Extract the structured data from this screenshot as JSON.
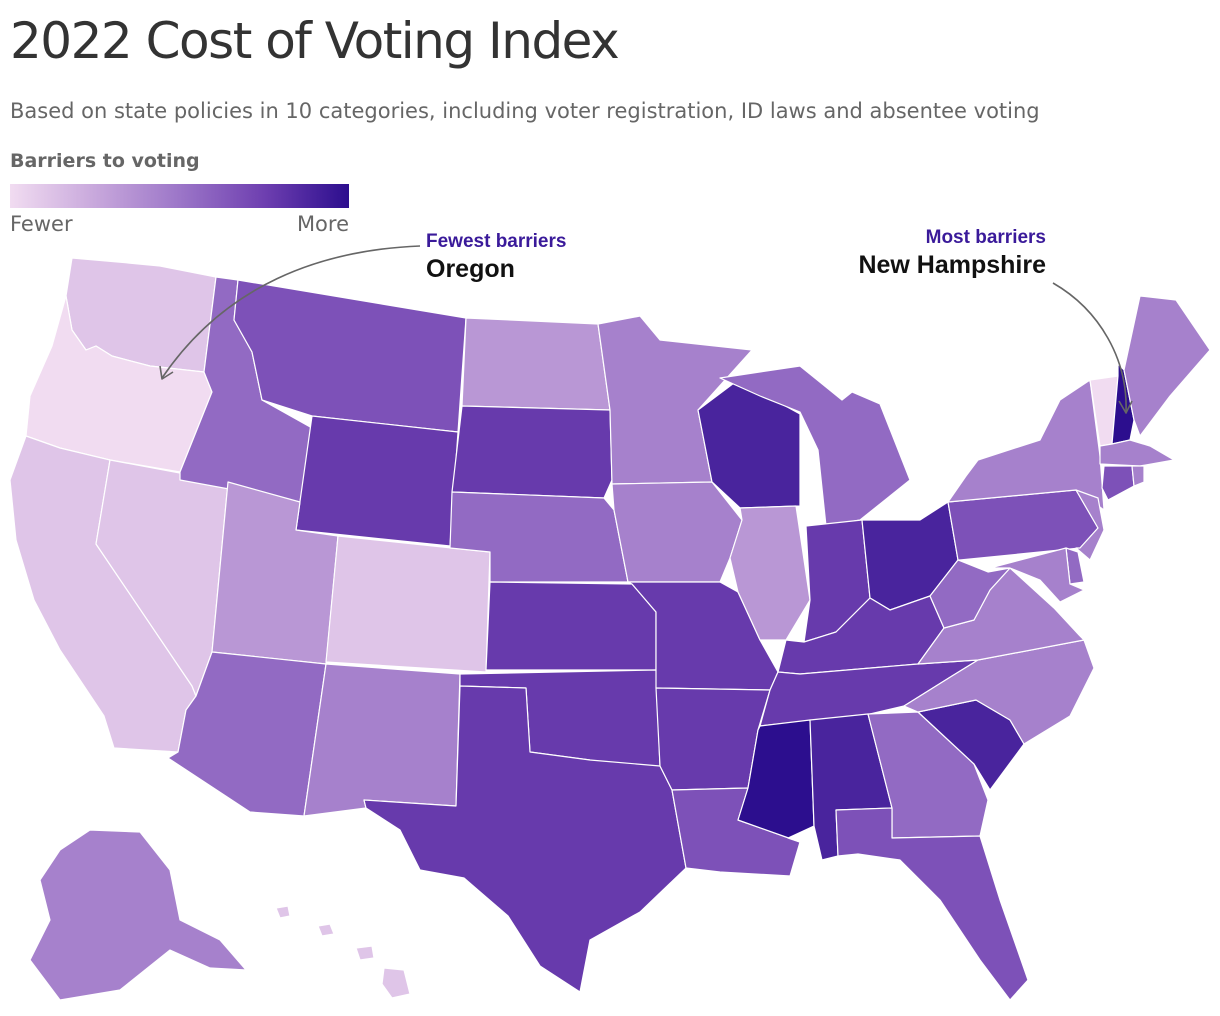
{
  "title": "2022 Cost of Voting Index",
  "subtitle": "Based on state policies in 10 categories, including voter registration, ID laws and absentee voting",
  "legend": {
    "title": "Barriers to voting",
    "low_label": "Fewer",
    "high_label": "More",
    "colors": [
      "#f1dcf1",
      "#c8a8dc",
      "#9c76c8",
      "#6e3fb0",
      "#2c0e8e"
    ]
  },
  "annotations": {
    "fewest": {
      "label": "Fewest barriers",
      "state": "Oregon"
    },
    "most": {
      "label": "Most barriers",
      "state": "New Hampshire"
    }
  },
  "map_data": {
    "type": "choropleth",
    "scale_note": "barrier level 1 (fewest) to 10 (most)",
    "levels": {
      "WA": 2,
      "OR": 1,
      "CA": 2,
      "NV": 2,
      "ID": 6,
      "MT": 7,
      "WY": 8,
      "UT": 4,
      "CO": 2,
      "AZ": 6,
      "NM": 5,
      "ND": 4,
      "SD": 8,
      "NE": 6,
      "KS": 8,
      "OK": 8,
      "TX": 8,
      "MN": 5,
      "IA": 5,
      "MO": 8,
      "AR": 8,
      "LA": 7,
      "WI": 9,
      "IL": 4,
      "MI": 6,
      "IN": 8,
      "OH": 9,
      "KY": 8,
      "TN": 8,
      "MS": 10,
      "AL": 9,
      "GA": 6,
      "FL": 7,
      "SC": 9,
      "NC": 5,
      "VA": 5,
      "WV": 6,
      "PA": 7,
      "NY": 5,
      "VT": 1,
      "NH": 10,
      "ME": 5,
      "MA": 5,
      "CT": 7,
      "RI": 5,
      "NJ": 5,
      "DE": 6,
      "MD": 5,
      "AK": 5,
      "HI": 2
    }
  }
}
